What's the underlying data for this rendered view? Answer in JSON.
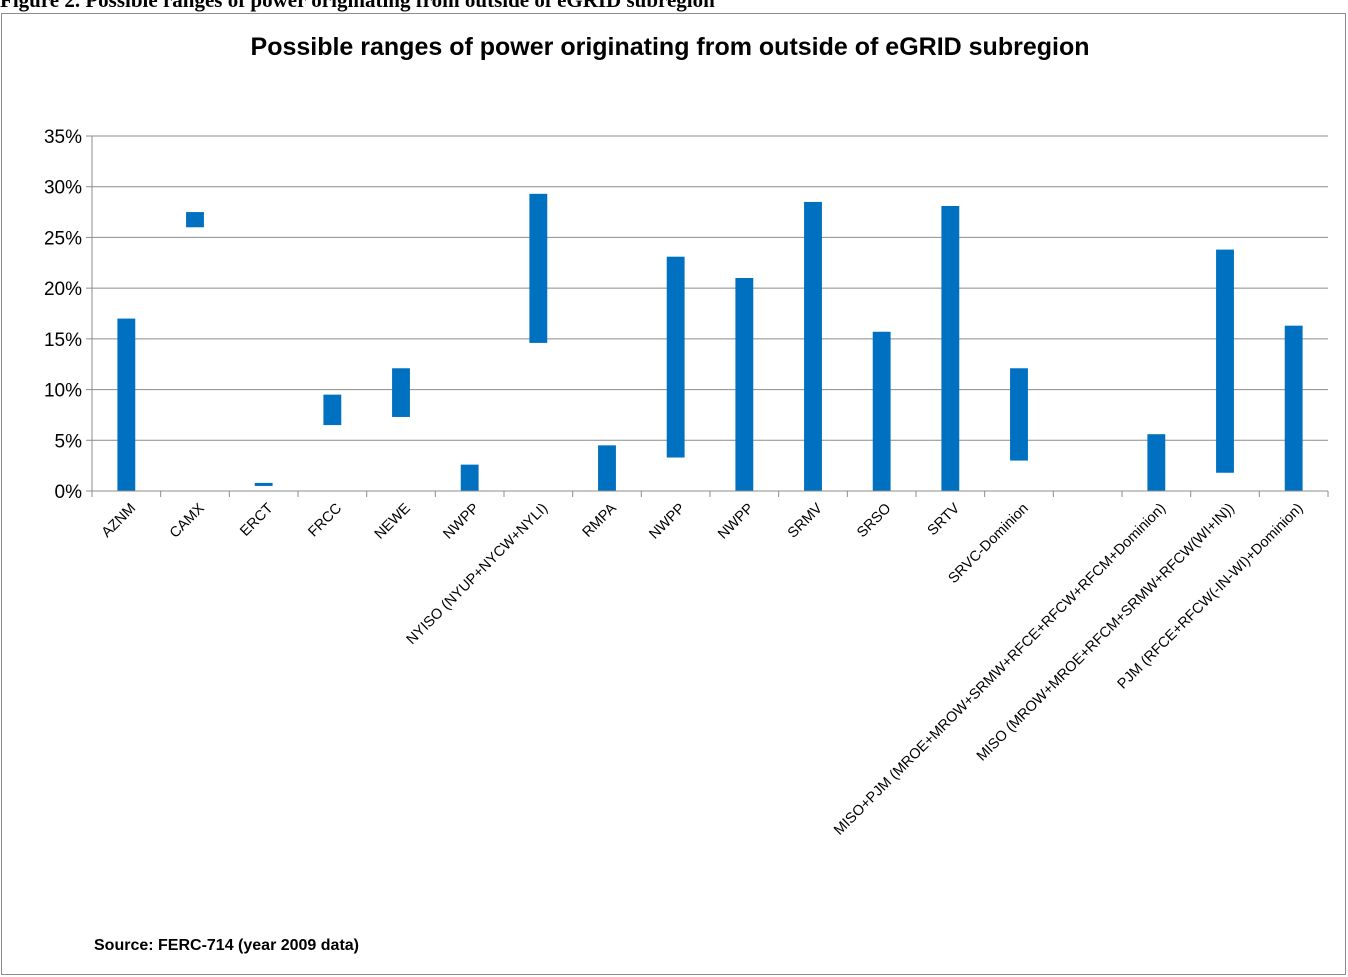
{
  "caption": "Figure 2. Possible ranges of power originating from outside of eGRID subregion",
  "source_note": "Source: FERC-714 (year 2009 data)",
  "chart_data": {
    "type": "bar",
    "subtype": "floating-range",
    "title": "Possible ranges of power originating from outside of eGRID subregion",
    "xlabel": "",
    "ylabel": "",
    "ylim": [
      0,
      35
    ],
    "yticks": [
      "0%",
      "5%",
      "10%",
      "15%",
      "20%",
      "25%",
      "30%",
      "35%"
    ],
    "grid": true,
    "legend": "none",
    "color": "#0070C0",
    "categories": [
      "AZNM",
      "CAMX",
      "ERCT",
      "FRCC",
      "NEWE",
      "NWPP",
      "NYISO (NYUP+NYCW+NYLI)",
      "RMPA",
      "NWPP",
      "NWPP",
      "SRMV",
      "SRSO",
      "SRTV",
      "SRVC-Dominion",
      "",
      "MISO+PJM (MROE+MROW+SRMW+RFCE+RFCW+RFCM+Dominion)",
      "MISO (MROW+MROE+RFCM+SRMW+RFCW(WI+IN))",
      "PJM (RFCE+RFCW(-IN-WI)+Dominion)"
    ],
    "ranges": [
      [
        0,
        17.0
      ],
      [
        26.0,
        27.5
      ],
      [
        0.5,
        0.8
      ],
      [
        6.5,
        9.5
      ],
      [
        7.3,
        12.1
      ],
      [
        0,
        2.6
      ],
      [
        14.6,
        29.3
      ],
      [
        0,
        4.5
      ],
      [
        3.3,
        23.1
      ],
      [
        0,
        21.0
      ],
      [
        0,
        28.5
      ],
      [
        0,
        15.7
      ],
      [
        0,
        28.1
      ],
      [
        3.0,
        12.1
      ],
      null,
      [
        0,
        5.6
      ],
      [
        1.8,
        23.8
      ],
      [
        0,
        16.3
      ]
    ]
  }
}
